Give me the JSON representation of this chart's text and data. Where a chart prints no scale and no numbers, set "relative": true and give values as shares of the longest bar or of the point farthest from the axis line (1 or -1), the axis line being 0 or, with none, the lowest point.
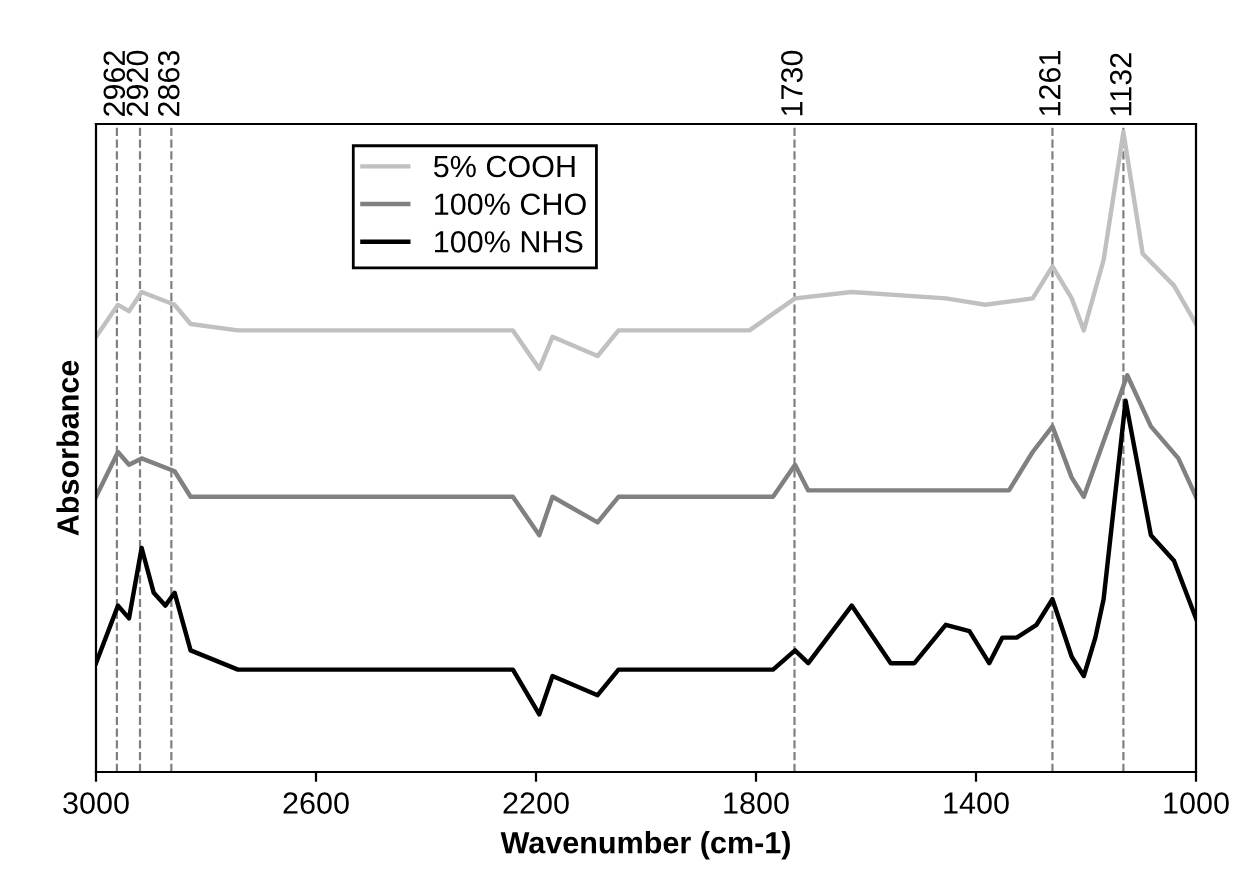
{
  "chart_data": {
    "type": "line",
    "relative": true,
    "xlabel": "Wavenumber (cm-1)",
    "ylabel": "Absorbance",
    "xlim": [
      3000,
      1000
    ],
    "xticks": [
      3000,
      2600,
      2200,
      1800,
      1400,
      1000
    ],
    "tick_labels": "x",
    "legend": "top left",
    "grid": false,
    "marker": "none",
    "line_style": "solid",
    "ref_lines": [
      {
        "axis": "x",
        "value": 2962,
        "label": "2962",
        "color": "#808080",
        "line_style": "dashed"
      },
      {
        "axis": "x",
        "value": 2920,
        "label": "2920",
        "color": "#808080",
        "line_style": "dashed"
      },
      {
        "axis": "x",
        "value": 2863,
        "label": "2863",
        "color": "#808080",
        "line_style": "dashed"
      },
      {
        "axis": "x",
        "value": 1730,
        "label": "1730",
        "color": "#808080",
        "line_style": "dashed"
      },
      {
        "axis": "x",
        "value": 1261,
        "label": "1261",
        "color": "#808080",
        "line_style": "dashed"
      },
      {
        "axis": "x",
        "value": 1132,
        "label": "1132",
        "color": "#808080",
        "line_style": "dashed"
      }
    ],
    "series": [
      {
        "name": "5% COOH",
        "color": "#c0c0c0",
        "x": [
          3000,
          2960,
          2940,
          2917,
          2857,
          2828,
          2742,
          2242,
          2194,
          2170,
          2088,
          2050,
          1812,
          1729,
          1626,
          1455,
          1383,
          1297,
          1261,
          1226,
          1204,
          1168,
          1132,
          1097,
          1040,
          1000
        ],
        "values": [
          0.68,
          0.73,
          0.72,
          0.75,
          0.73,
          0.7,
          0.69,
          0.69,
          0.63,
          0.68,
          0.65,
          0.69,
          0.69,
          0.74,
          0.75,
          0.74,
          0.73,
          0.74,
          0.79,
          0.74,
          0.69,
          0.8,
          1.0,
          0.81,
          0.76,
          0.7
        ]
      },
      {
        "name": "100% CHO",
        "color": "#808080",
        "x": [
          3000,
          2960,
          2940,
          2917,
          2857,
          2828,
          2742,
          2242,
          2194,
          2170,
          2088,
          2050,
          1769,
          1729,
          1705,
          1340,
          1297,
          1261,
          1226,
          1204,
          1125,
          1082,
          1032,
          1000
        ],
        "values": [
          0.43,
          0.5,
          0.48,
          0.49,
          0.47,
          0.43,
          0.43,
          0.43,
          0.37,
          0.43,
          0.39,
          0.43,
          0.43,
          0.48,
          0.44,
          0.44,
          0.5,
          0.54,
          0.46,
          0.43,
          0.62,
          0.54,
          0.49,
          0.43
        ]
      },
      {
        "name": "100% NHS",
        "color": "#000000",
        "x": [
          3000,
          2960,
          2940,
          2917,
          2895,
          2874,
          2857,
          2828,
          2742,
          2242,
          2194,
          2170,
          2088,
          2050,
          1769,
          1729,
          1705,
          1626,
          1555,
          1512,
          1455,
          1412,
          1376,
          1352,
          1326,
          1290,
          1261,
          1226,
          1204,
          1183,
          1168,
          1128,
          1082,
          1040,
          1000
        ],
        "values": [
          0.17,
          0.26,
          0.24,
          0.35,
          0.28,
          0.26,
          0.28,
          0.19,
          0.16,
          0.16,
          0.09,
          0.15,
          0.12,
          0.16,
          0.16,
          0.19,
          0.17,
          0.26,
          0.17,
          0.17,
          0.23,
          0.22,
          0.17,
          0.21,
          0.21,
          0.23,
          0.27,
          0.18,
          0.15,
          0.21,
          0.27,
          0.58,
          0.37,
          0.33,
          0.24
        ]
      }
    ]
  }
}
